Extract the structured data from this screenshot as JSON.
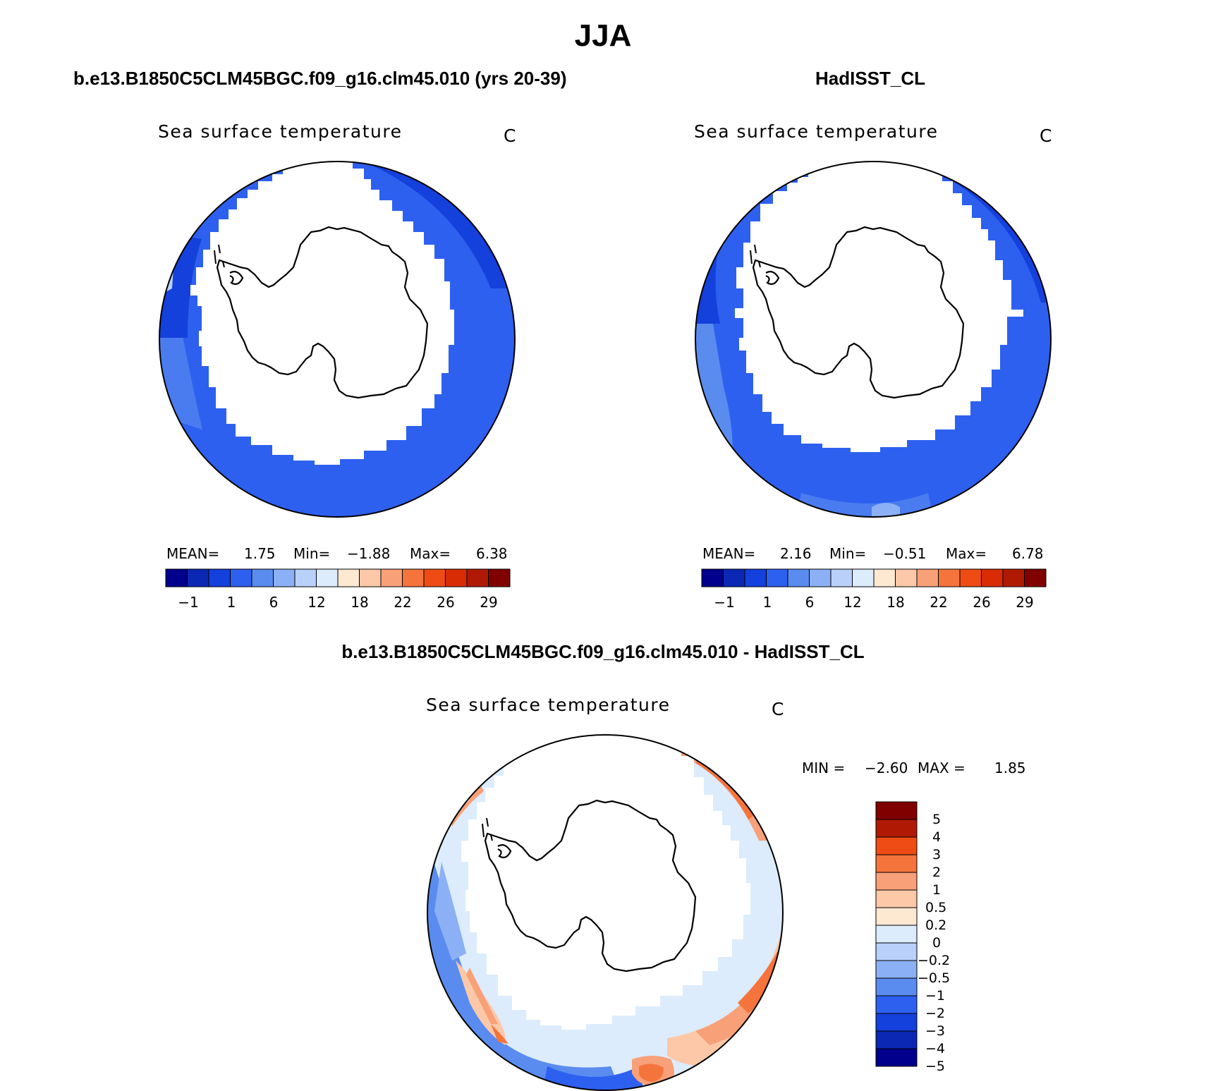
{
  "title": "JJA",
  "diff_title": "b.e13.B1850C5CLM45BGC.f09_g16.clm45.010 - HadISST_CL",
  "palette": {
    "abs": [
      "#00008c",
      "#0a28b4",
      "#1440dc",
      "#2e60f0",
      "#5a8cf0",
      "#8cb0f5",
      "#b8d0fa",
      "#dcecfc",
      "#fde8d2",
      "#fcc8a8",
      "#f8a078",
      "#f4743c",
      "#ee4c14",
      "#d82c04",
      "#b01a04",
      "#800000"
    ],
    "diff": [
      "#00008c",
      "#0a28b4",
      "#1440dc",
      "#2e60f0",
      "#5a8cf0",
      "#8cb0f5",
      "#b8d0fa",
      "#dcecfc",
      "#fde8d2",
      "#fcc8a8",
      "#f8a078",
      "#f4743c",
      "#ee4c14",
      "#b01a04",
      "#800000"
    ]
  },
  "chart_data": [
    {
      "type": "heatmap",
      "case": "b.e13.B1850C5CLM45BGC.f09_g16.clm45.010 (yrs 20-39)",
      "variable": "Sea surface temperature",
      "units": "C",
      "stats": {
        "mean_label": "MEAN=",
        "mean": "1.75",
        "min_label": "Min=",
        "min": "−1.88",
        "max_label": "Max=",
        "max": "6.38"
      },
      "colorbar_ticks": [
        "−1",
        "1",
        "6",
        "12",
        "18",
        "22",
        "26",
        "29"
      ]
    },
    {
      "type": "heatmap",
      "case": "HadISST_CL",
      "variable": "Sea surface temperature",
      "units": "C",
      "stats": {
        "mean_label": "MEAN=",
        "mean": "2.16",
        "min_label": "Min=",
        "min": "−0.51",
        "max_label": "Max=",
        "max": "6.78"
      },
      "colorbar_ticks": [
        "−1",
        "1",
        "6",
        "12",
        "18",
        "22",
        "26",
        "29"
      ]
    },
    {
      "type": "heatmap",
      "variable": "Sea surface temperature",
      "units": "C",
      "stats": {
        "min_label": "MIN =",
        "min": "−2.60",
        "max_label": "MAX =",
        "max": "1.85"
      },
      "colorbar_ticks": [
        "5",
        "4",
        "3",
        "2",
        "1",
        "0.5",
        "0.2",
        "0",
        "−0.2",
        "−0.5",
        "−1",
        "−2",
        "−3",
        "−4",
        "−5"
      ]
    }
  ]
}
